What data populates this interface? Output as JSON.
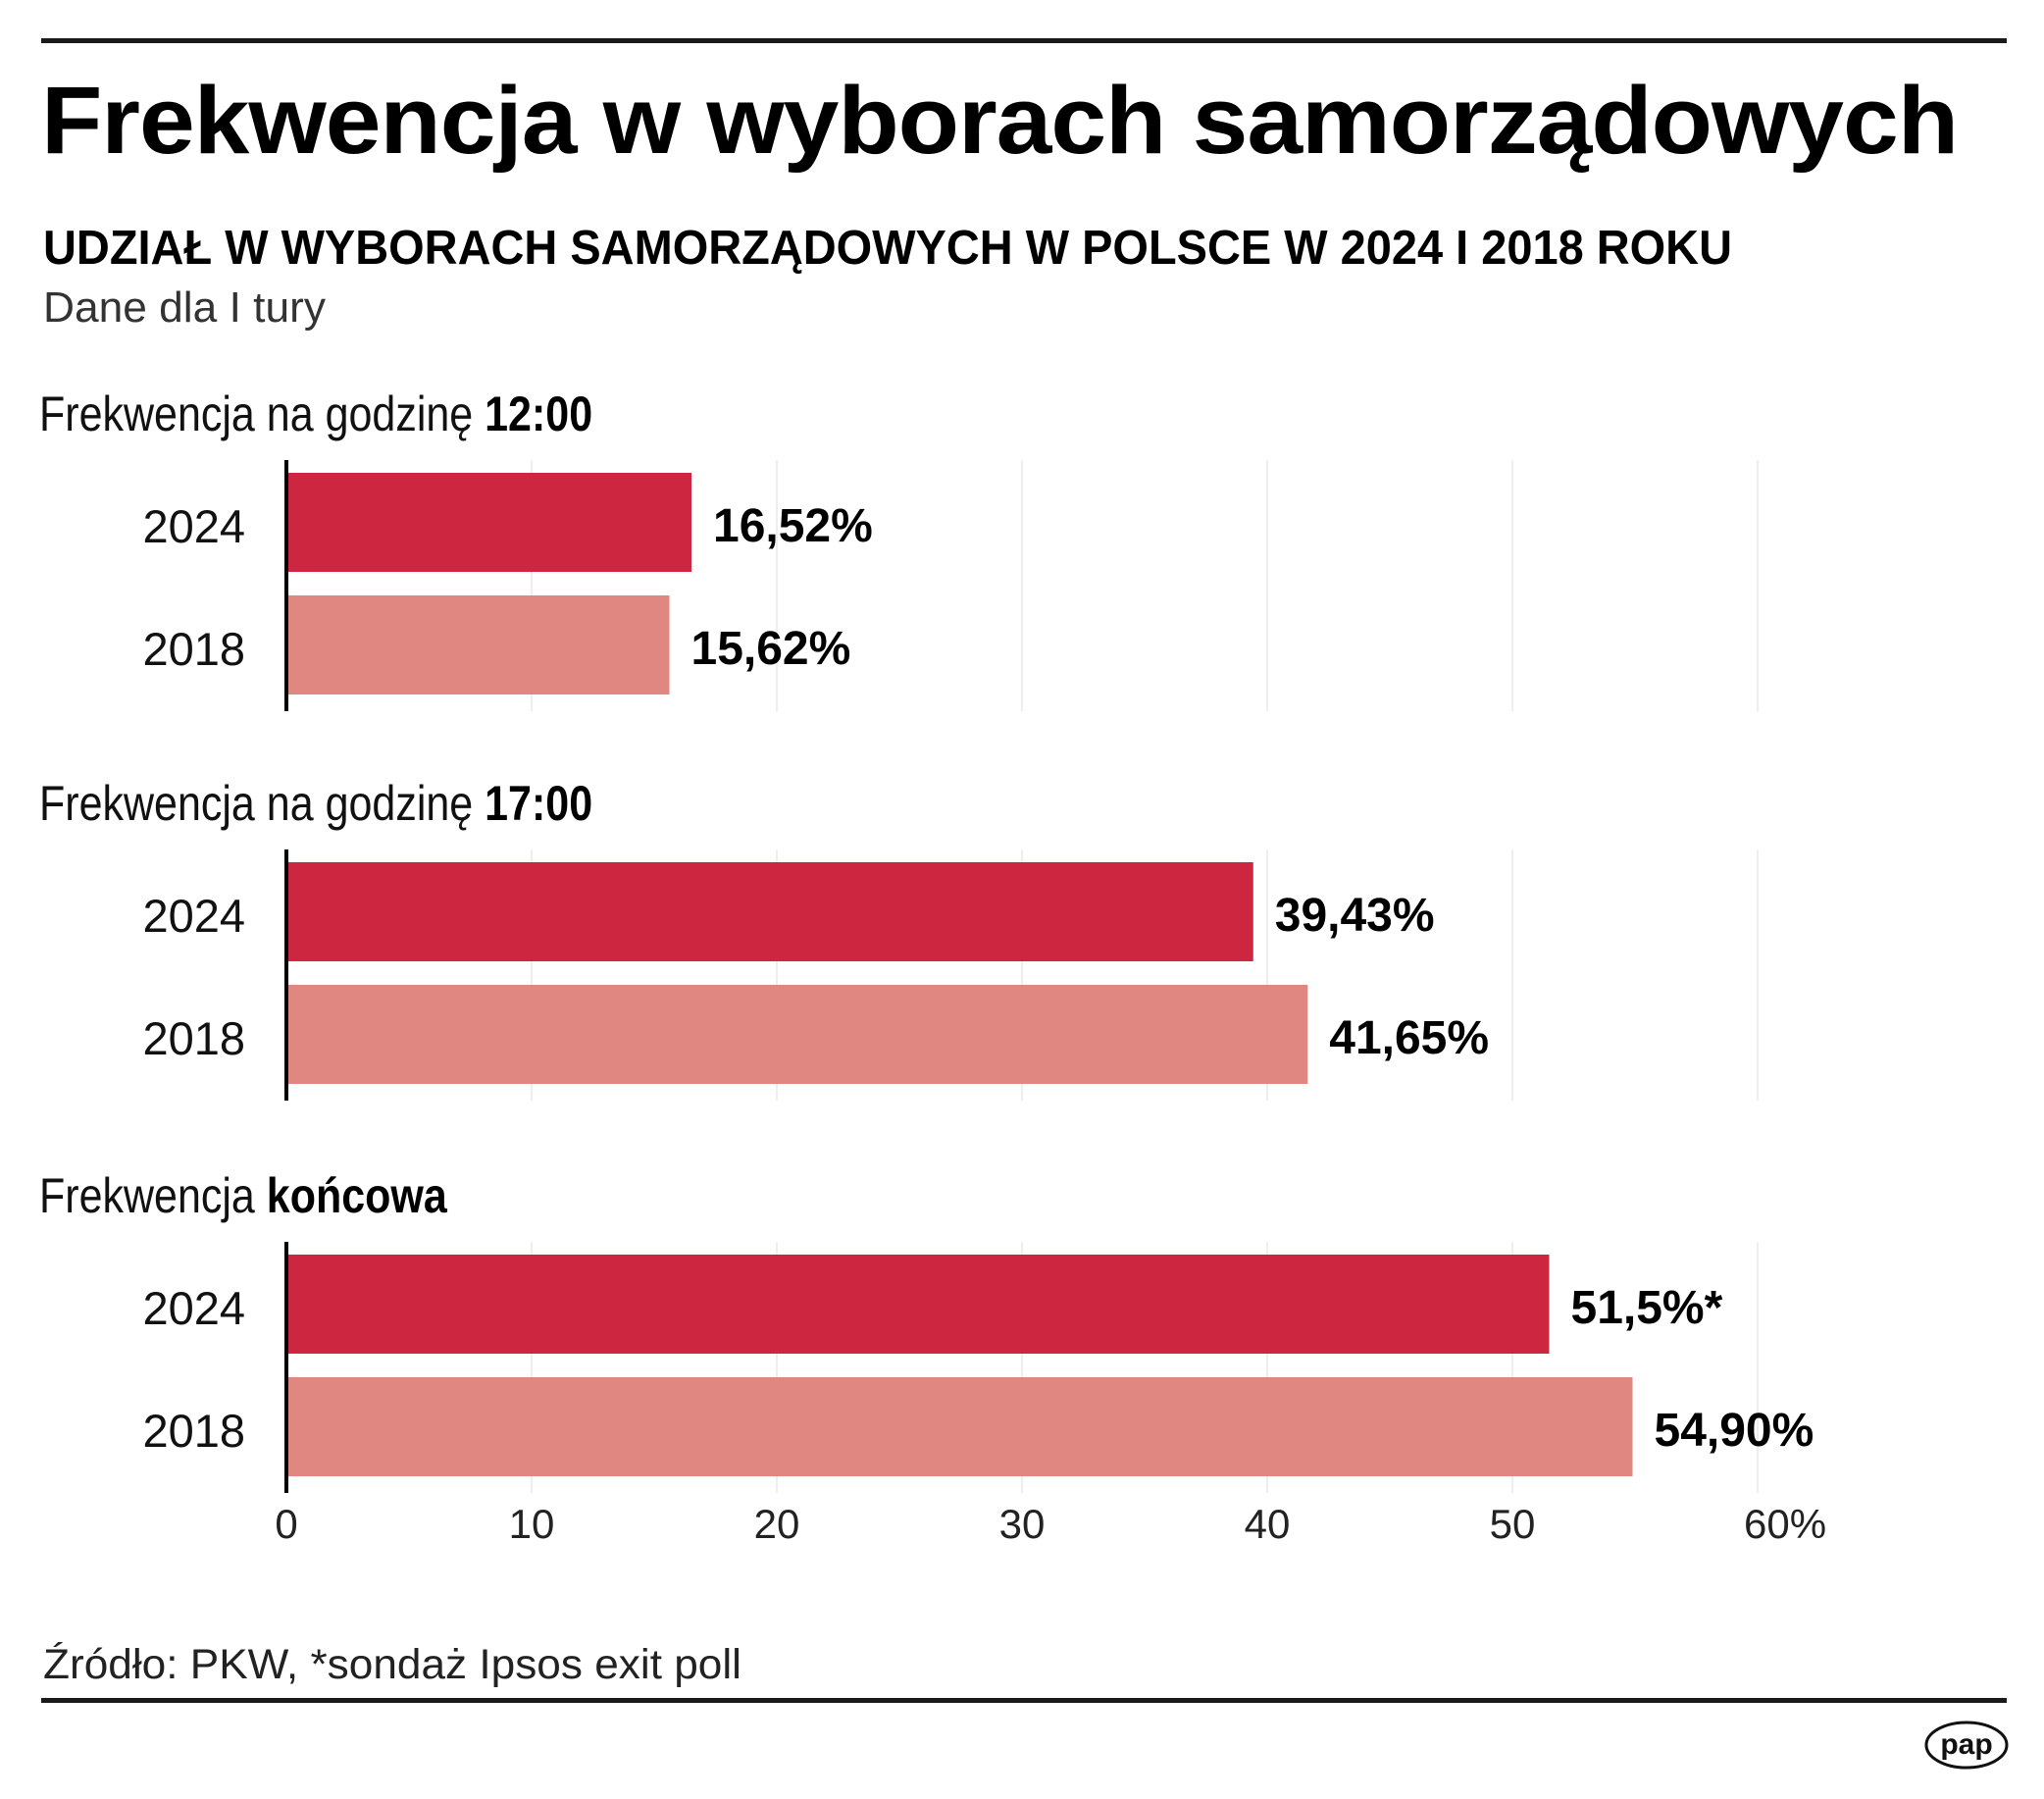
{
  "header": {
    "title": "Frekwencja w wyborach samorządowych",
    "subtitle": "UDZIAŁ W WYBORACH SAMORZĄDOWYCH W POLSCE W 2024 I 2018 ROKU",
    "note": "Dane dla I tury"
  },
  "footer": {
    "source": "Źródło: PKW, *sondaż Ipsos exit poll",
    "logo_text": "pap",
    "logo_icon": "pap-logo-icon"
  },
  "colors": {
    "series_2024": "#CD2640",
    "series_2018": "#E08782",
    "gridline": "#EEEEEE",
    "axis": "#000000"
  },
  "chart_data": {
    "type": "bar",
    "orientation": "horizontal",
    "title": "Frekwencja w wyborach samorządowych",
    "subtitle": "UDZIAŁ W WYBORACH SAMORZĄDOWYCH W POLSCE W 2024 I 2018 ROKU",
    "xlabel": "",
    "ylabel": "",
    "xlim": [
      0,
      60
    ],
    "x_ticks": [
      0,
      10,
      20,
      30,
      40,
      50,
      60
    ],
    "x_tick_labels": [
      "0",
      "10",
      "20",
      "30",
      "40",
      "50",
      "60%"
    ],
    "grid": true,
    "legend": "none",
    "series_names": [
      "2024",
      "2018"
    ],
    "groups": [
      {
        "heading_prefix": "Frekwencja na godzinę ",
        "heading_bold": "12:00",
        "bars": [
          {
            "year": "2024",
            "value": 16.52,
            "label": "16,52%"
          },
          {
            "year": "2018",
            "value": 15.62,
            "label": "15,62%"
          }
        ]
      },
      {
        "heading_prefix": "Frekwencja na godzinę ",
        "heading_bold": "17:00",
        "bars": [
          {
            "year": "2024",
            "value": 39.43,
            "label": "39,43%"
          },
          {
            "year": "2018",
            "value": 41.65,
            "label": "41,65%"
          }
        ]
      },
      {
        "heading_prefix": "Frekwencja ",
        "heading_bold": "końcowa",
        "bars": [
          {
            "year": "2024",
            "value": 51.5,
            "label": "51,5%*"
          },
          {
            "year": "2018",
            "value": 54.9,
            "label": "54,90%"
          }
        ]
      }
    ],
    "annotations": [
      "*sondaż Ipsos exit poll"
    ]
  }
}
